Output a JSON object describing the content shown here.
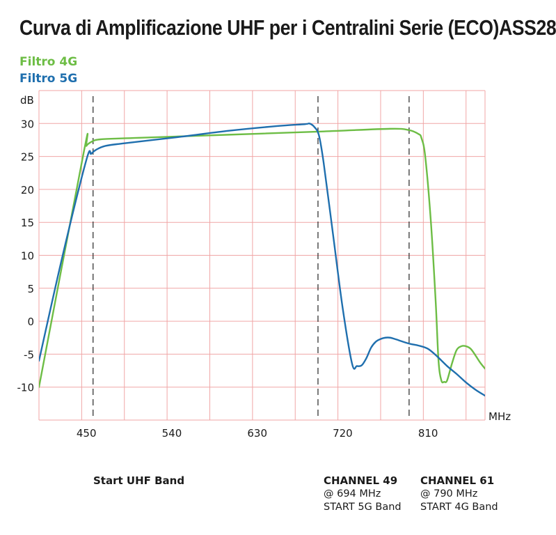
{
  "chart_data": {
    "type": "line",
    "title": "Curva di Amplificazione UHF per i Centralini Serie (ECO)ASS28",
    "xlabel": "MHz",
    "ylabel": "dB",
    "xlim": [
      400,
      870
    ],
    "ylim": [
      -15,
      35
    ],
    "x_ticks": [
      {
        "value": 450,
        "label": "450"
      },
      {
        "value": 540,
        "label": "540"
      },
      {
        "value": 630,
        "label": "630"
      },
      {
        "value": 720,
        "label": "720"
      },
      {
        "value": 810,
        "label": "810"
      }
    ],
    "y_ticks": [
      {
        "value": 30,
        "label": "30"
      },
      {
        "value": 25,
        "label": "25"
      },
      {
        "value": 20,
        "label": "20"
      },
      {
        "value": 15,
        "label": "15"
      },
      {
        "value": 10,
        "label": "10"
      },
      {
        "value": 5,
        "label": "5"
      },
      {
        "value": 0,
        "label": "0"
      },
      {
        "value": -5,
        "label": "-5"
      },
      {
        "value": -10,
        "label": "-10"
      }
    ],
    "x_gridlines": [
      445,
      490,
      535,
      580,
      625,
      670,
      715,
      760,
      805,
      850
    ],
    "y_gridlines": [
      35,
      30,
      25,
      20,
      15,
      10,
      5,
      0,
      -5,
      -10
    ],
    "grid": true,
    "legend_position": "top-left",
    "series": [
      {
        "name": "Filtro 4G",
        "color": "#6dbd45",
        "x": [
          400,
          447,
          450,
          455,
          465,
          500,
          600,
          700,
          770,
          790,
          800,
          803,
          807,
          813,
          818,
          821,
          824,
          827,
          830,
          835,
          840,
          845,
          850,
          855,
          860,
          865,
          870
        ],
        "y": [
          -10,
          25.5,
          26.6,
          27.2,
          27.6,
          27.8,
          28.3,
          28.8,
          29.2,
          29.0,
          28.4,
          27.8,
          25.0,
          15.0,
          3.0,
          -6.0,
          -9.0,
          -9.2,
          -9.0,
          -6.5,
          -4.4,
          -3.8,
          -3.8,
          -4.2,
          -5.2,
          -6.3,
          -7.2
        ]
      },
      {
        "name": "Filtro 5G",
        "color": "#1f6fae",
        "x": [
          400,
          425,
          450,
          455,
          460,
          470,
          490,
          550,
          600,
          650,
          680,
          685,
          690,
          695,
          700,
          710,
          720,
          730,
          735,
          740,
          745,
          750,
          755,
          760,
          765,
          770,
          775,
          790,
          800,
          810,
          820,
          830,
          840,
          850,
          860,
          870
        ],
        "y": [
          -6.0,
          10.0,
          24.5,
          25.4,
          26.0,
          26.6,
          27.0,
          28.0,
          28.9,
          29.6,
          29.9,
          30.0,
          29.5,
          28.2,
          24.0,
          13.0,
          2.0,
          -6.5,
          -6.8,
          -6.7,
          -5.6,
          -4.0,
          -3.1,
          -2.7,
          -2.5,
          -2.5,
          -2.7,
          -3.4,
          -3.7,
          -4.2,
          -5.4,
          -6.8,
          -8.0,
          -9.3,
          -10.4,
          -11.3
        ]
      }
    ],
    "vlines": [
      {
        "x": 457,
        "style": "dashed"
      },
      {
        "x": 694,
        "style": "dashed"
      },
      {
        "x": 790,
        "style": "dashed"
      }
    ],
    "annotations": [
      {
        "id": "start-uhf",
        "heading": "Start UHF Band",
        "lines": []
      },
      {
        "id": "ch49",
        "heading": "CHANNEL 49",
        "lines": [
          "@ 694 MHz",
          "START 5G Band"
        ]
      },
      {
        "id": "ch61",
        "heading": "CHANNEL 61",
        "lines": [
          "@ 790 MHz",
          "START 4G Band"
        ]
      }
    ]
  },
  "colors": {
    "grid": "#f0a6a6",
    "axis_text": "#1a1a1a",
    "dashed": "#333333"
  }
}
